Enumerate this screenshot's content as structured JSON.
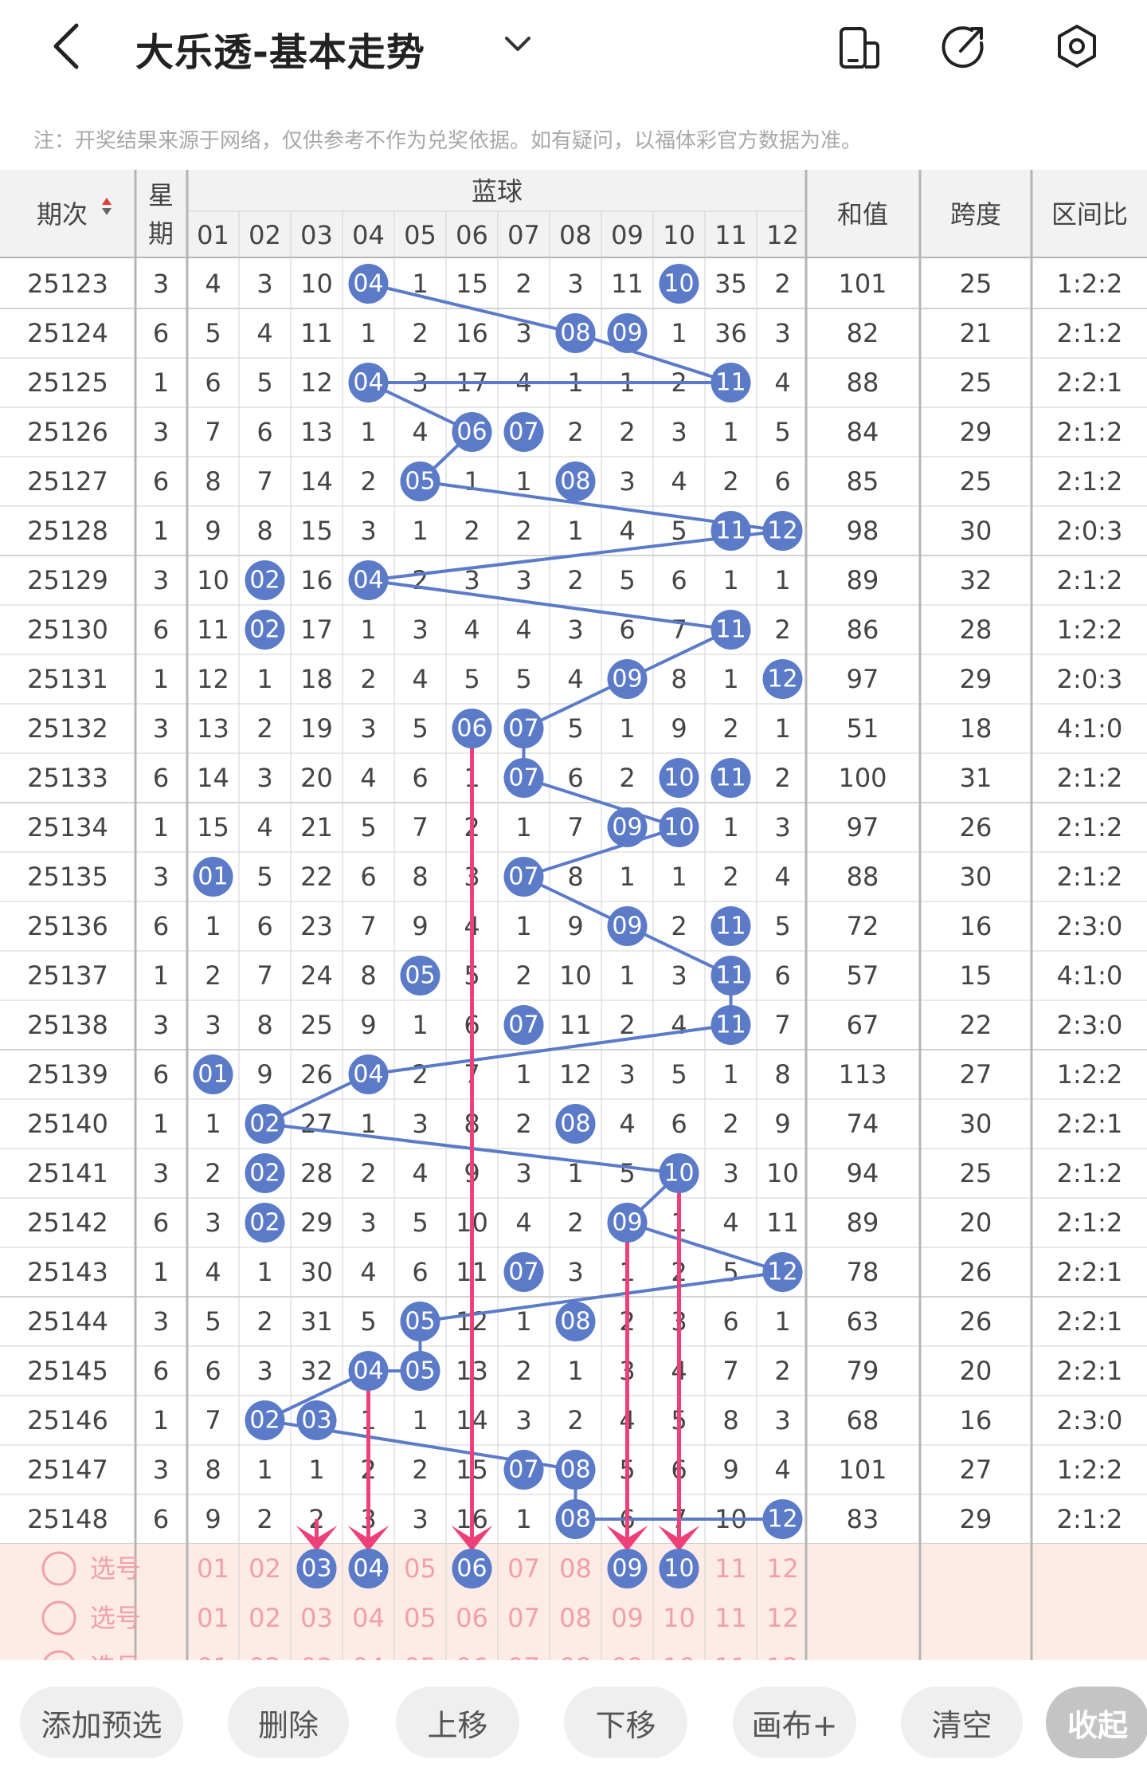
{
  "header": {
    "title": "大乐透-基本走势",
    "notice": "注：开奖结果来源于网络，仅供参考不作为兑奖依据。如有疑问，以福体彩官方数据为准。"
  },
  "table": {
    "headers": {
      "period": "期次",
      "weekday_line1": "星",
      "weekday_line2": "期",
      "blue": "蓝球",
      "sum": "和值",
      "span": "跨度",
      "ratio": "区间比"
    },
    "ball_columns": [
      "01",
      "02",
      "03",
      "04",
      "05",
      "06",
      "07",
      "08",
      "09",
      "10",
      "11",
      "12"
    ],
    "partial_row": {
      "period": "25123",
      "weekday": "3",
      "cells": [
        "4",
        "3",
        "10",
        "04",
        "1",
        "15",
        "2",
        "3",
        "11",
        "10",
        "35",
        "2"
      ],
      "sum": "101",
      "span": "25",
      "ratio": "1:2:2"
    },
    "rows": [
      {
        "period": "25124",
        "weekday": "6",
        "cells": [
          "5",
          "4",
          "11",
          "1",
          "2",
          "16",
          "3",
          "08",
          "09",
          "1",
          "36",
          "3"
        ],
        "sum": "82",
        "span": "21",
        "ratio": "2:1:2"
      },
      {
        "period": "25125",
        "weekday": "1",
        "cells": [
          "6",
          "5",
          "12",
          "04",
          "3",
          "17",
          "4",
          "1",
          "1",
          "2",
          "11",
          "4"
        ],
        "sum": "88",
        "span": "25",
        "ratio": "2:2:1"
      },
      {
        "period": "25126",
        "weekday": "3",
        "cells": [
          "7",
          "6",
          "13",
          "1",
          "4",
          "06",
          "07",
          "2",
          "2",
          "3",
          "1",
          "5"
        ],
        "sum": "84",
        "span": "29",
        "ratio": "2:1:2"
      },
      {
        "period": "25127",
        "weekday": "6",
        "cells": [
          "8",
          "7",
          "14",
          "2",
          "05",
          "1",
          "1",
          "08",
          "3",
          "4",
          "2",
          "6"
        ],
        "sum": "85",
        "span": "25",
        "ratio": "2:1:2"
      },
      {
        "period": "25128",
        "weekday": "1",
        "cells": [
          "9",
          "8",
          "15",
          "3",
          "1",
          "2",
          "2",
          "1",
          "4",
          "5",
          "11",
          "12"
        ],
        "sum": "98",
        "span": "30",
        "ratio": "2:0:3"
      },
      {
        "period": "25129",
        "weekday": "3",
        "cells": [
          "10",
          "02",
          "16",
          "04",
          "2",
          "3",
          "3",
          "2",
          "5",
          "6",
          "1",
          "1"
        ],
        "sum": "89",
        "span": "32",
        "ratio": "2:1:2"
      },
      {
        "period": "25130",
        "weekday": "6",
        "cells": [
          "11",
          "02",
          "17",
          "1",
          "3",
          "4",
          "4",
          "3",
          "6",
          "7",
          "11",
          "2"
        ],
        "sum": "86",
        "span": "28",
        "ratio": "1:2:2"
      },
      {
        "period": "25131",
        "weekday": "1",
        "cells": [
          "12",
          "1",
          "18",
          "2",
          "4",
          "5",
          "5",
          "4",
          "09",
          "8",
          "1",
          "12"
        ],
        "sum": "97",
        "span": "29",
        "ratio": "2:0:3"
      },
      {
        "period": "25132",
        "weekday": "3",
        "cells": [
          "13",
          "2",
          "19",
          "3",
          "5",
          "06",
          "07",
          "5",
          "1",
          "9",
          "2",
          "1"
        ],
        "sum": "51",
        "span": "18",
        "ratio": "4:1:0"
      },
      {
        "period": "25133",
        "weekday": "6",
        "cells": [
          "14",
          "3",
          "20",
          "4",
          "6",
          "1",
          "07",
          "6",
          "2",
          "10",
          "11",
          "2"
        ],
        "sum": "100",
        "span": "31",
        "ratio": "2:1:2"
      },
      {
        "period": "25134",
        "weekday": "1",
        "cells": [
          "15",
          "4",
          "21",
          "5",
          "7",
          "2",
          "1",
          "7",
          "09",
          "10",
          "1",
          "3"
        ],
        "sum": "97",
        "span": "26",
        "ratio": "2:1:2"
      },
      {
        "period": "25135",
        "weekday": "3",
        "cells": [
          "01",
          "5",
          "22",
          "6",
          "8",
          "3",
          "07",
          "8",
          "1",
          "1",
          "2",
          "4"
        ],
        "sum": "88",
        "span": "30",
        "ratio": "2:1:2"
      },
      {
        "period": "25136",
        "weekday": "6",
        "cells": [
          "1",
          "6",
          "23",
          "7",
          "9",
          "4",
          "1",
          "9",
          "09",
          "2",
          "11",
          "5"
        ],
        "sum": "72",
        "span": "16",
        "ratio": "2:3:0"
      },
      {
        "period": "25137",
        "weekday": "1",
        "cells": [
          "2",
          "7",
          "24",
          "8",
          "05",
          "5",
          "2",
          "10",
          "1",
          "3",
          "11",
          "6"
        ],
        "sum": "57",
        "span": "15",
        "ratio": "4:1:0"
      },
      {
        "period": "25138",
        "weekday": "3",
        "cells": [
          "3",
          "8",
          "25",
          "9",
          "1",
          "6",
          "07",
          "11",
          "2",
          "4",
          "11",
          "7"
        ],
        "sum": "67",
        "span": "22",
        "ratio": "2:3:0"
      },
      {
        "period": "25139",
        "weekday": "6",
        "cells": [
          "01",
          "9",
          "26",
          "04",
          "2",
          "7",
          "1",
          "12",
          "3",
          "5",
          "1",
          "8"
        ],
        "sum": "113",
        "span": "27",
        "ratio": "1:2:2"
      },
      {
        "period": "25140",
        "weekday": "1",
        "cells": [
          "1",
          "02",
          "27",
          "1",
          "3",
          "8",
          "2",
          "08",
          "4",
          "6",
          "2",
          "9"
        ],
        "sum": "74",
        "span": "30",
        "ratio": "2:2:1"
      },
      {
        "period": "25141",
        "weekday": "3",
        "cells": [
          "2",
          "02",
          "28",
          "2",
          "4",
          "9",
          "3",
          "1",
          "5",
          "10",
          "3",
          "10"
        ],
        "sum": "94",
        "span": "25",
        "ratio": "2:1:2"
      },
      {
        "period": "25142",
        "weekday": "6",
        "cells": [
          "3",
          "02",
          "29",
          "3",
          "5",
          "10",
          "4",
          "2",
          "09",
          "1",
          "4",
          "11"
        ],
        "sum": "89",
        "span": "20",
        "ratio": "2:1:2"
      },
      {
        "period": "25143",
        "weekday": "1",
        "cells": [
          "4",
          "1",
          "30",
          "4",
          "6",
          "11",
          "07",
          "3",
          "1",
          "2",
          "5",
          "12"
        ],
        "sum": "78",
        "span": "26",
        "ratio": "2:2:1"
      },
      {
        "period": "25144",
        "weekday": "3",
        "cells": [
          "5",
          "2",
          "31",
          "5",
          "05",
          "12",
          "1",
          "08",
          "2",
          "3",
          "6",
          "1"
        ],
        "sum": "63",
        "span": "26",
        "ratio": "2:2:1"
      },
      {
        "period": "25145",
        "weekday": "6",
        "cells": [
          "6",
          "3",
          "32",
          "04",
          "05",
          "13",
          "2",
          "1",
          "3",
          "4",
          "7",
          "2"
        ],
        "sum": "79",
        "span": "20",
        "ratio": "2:2:1"
      },
      {
        "period": "25146",
        "weekday": "1",
        "cells": [
          "7",
          "02",
          "03",
          "1",
          "1",
          "14",
          "3",
          "2",
          "4",
          "5",
          "8",
          "3"
        ],
        "sum": "68",
        "span": "16",
        "ratio": "2:3:0"
      },
      {
        "period": "25147",
        "weekday": "3",
        "cells": [
          "8",
          "1",
          "1",
          "2",
          "2",
          "15",
          "07",
          "08",
          "5",
          "6",
          "9",
          "4"
        ],
        "sum": "101",
        "span": "27",
        "ratio": "1:2:2"
      },
      {
        "period": "25148",
        "weekday": "6",
        "cells": [
          "9",
          "2",
          "2",
          "3",
          "3",
          "16",
          "1",
          "08",
          "6",
          "7",
          "10",
          "12"
        ],
        "sum": "83",
        "span": "29",
        "ratio": "2:1:2"
      }
    ],
    "trend_path": [
      [
        1,
        1
      ],
      [
        2,
        2
      ],
      [
        2,
        3
      ],
      [
        3,
        1
      ],
      [
        4,
        1
      ],
      [
        5,
        2
      ],
      [
        6,
        2
      ],
      [
        7,
        2
      ],
      [
        8,
        1
      ],
      [
        9,
        2
      ],
      [
        10,
        1
      ],
      [
        11,
        2
      ],
      [
        12,
        2
      ],
      [
        13,
        1
      ],
      [
        14,
        2
      ],
      [
        15,
        2
      ],
      [
        16,
        2
      ],
      [
        17,
        1
      ],
      [
        18,
        2
      ],
      [
        19,
        2
      ],
      [
        20,
        2
      ],
      [
        21,
        1
      ],
      [
        22,
        2
      ],
      [
        22,
        1
      ],
      [
        23,
        1
      ],
      [
        24,
        2
      ],
      [
        25,
        1
      ],
      [
        25,
        2
      ]
    ],
    "pick_label": "选号",
    "pick_rows": [
      {
        "selected": [
          "03",
          "04",
          "06",
          "09",
          "10"
        ]
      },
      {
        "selected": []
      },
      {
        "selected": []
      }
    ],
    "predictions": [
      {
        "from_row": 25,
        "ball": "03"
      },
      {
        "from_row": 22,
        "ball": "04"
      },
      {
        "from_row": 9,
        "ball": "06"
      },
      {
        "from_row": 19,
        "ball": "09"
      },
      {
        "from_row": 18,
        "ball": "10"
      }
    ]
  },
  "bottom_bar": {
    "buttons": [
      "添加预选",
      "删除",
      "上移",
      "下移",
      "画布+",
      "清空",
      "收起"
    ]
  },
  "colors": {
    "ball": "#5b7ac8",
    "trend_line": "#5b7ac8",
    "arrow": "#ee3f78",
    "pick_bg": "#fdece6",
    "pick_text": "#f0a0a8",
    "grid": "#d2d2d2",
    "column_divider": "#b4b4b4",
    "header_bg": "#f2f2f2"
  }
}
